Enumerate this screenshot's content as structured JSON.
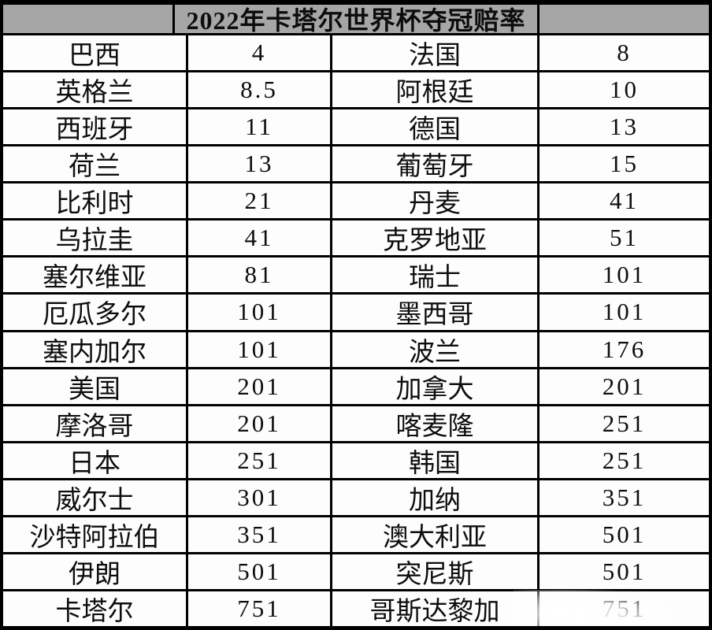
{
  "title": "2022年卡塔尔世界杯夺冠赔率",
  "colors": {
    "header_bg": "#a6a6a6",
    "border": "#000000",
    "cell_bg": "#fdfdfd",
    "text": "#0d0d0d"
  },
  "table": {
    "rows": [
      {
        "cells": [
          "巴西",
          "4",
          "法国",
          "8"
        ]
      },
      {
        "cells": [
          "英格兰",
          "8.5",
          "阿根廷",
          "10"
        ]
      },
      {
        "cells": [
          "西班牙",
          "11",
          "德国",
          "13"
        ]
      },
      {
        "cells": [
          "荷兰",
          "13",
          "葡萄牙",
          "15"
        ]
      },
      {
        "cells": [
          "比利时",
          "21",
          "丹麦",
          "41"
        ]
      },
      {
        "cells": [
          "乌拉圭",
          "41",
          "克罗地亚",
          "51"
        ]
      },
      {
        "cells": [
          "塞尔维亚",
          "81",
          "瑞士",
          "101"
        ]
      },
      {
        "cells": [
          "厄瓜多尔",
          "101",
          "墨西哥",
          "101"
        ]
      },
      {
        "cells": [
          "塞内加尔",
          "101",
          "波兰",
          "176"
        ]
      },
      {
        "cells": [
          "美国",
          "201",
          "加拿大",
          "201"
        ]
      },
      {
        "cells": [
          "摩洛哥",
          "201",
          "喀麦隆",
          "251"
        ]
      },
      {
        "cells": [
          "日本",
          "251",
          "韩国",
          "251"
        ]
      },
      {
        "cells": [
          "威尔士",
          "301",
          "加纳",
          "351"
        ]
      },
      {
        "cells": [
          "沙特阿拉伯",
          "351",
          "澳大利亚",
          "501"
        ]
      },
      {
        "cells": [
          "伊朗",
          "501",
          "突尼斯",
          "501"
        ]
      },
      {
        "cells": [
          "卡塔尔",
          "751",
          "哥斯达黎加",
          "751"
        ]
      }
    ]
  },
  "chart_data": {
    "type": "table",
    "title": "2022年卡塔尔世界杯夺冠赔率",
    "rows": [
      [
        "巴西",
        "4",
        "法国",
        "8"
      ],
      [
        "英格兰",
        "8.5",
        "阿根廷",
        "10"
      ],
      [
        "西班牙",
        "11",
        "德国",
        "13"
      ],
      [
        "荷兰",
        "13",
        "葡萄牙",
        "15"
      ],
      [
        "比利时",
        "21",
        "丹麦",
        "41"
      ],
      [
        "乌拉圭",
        "41",
        "克罗地亚",
        "51"
      ],
      [
        "塞尔维亚",
        "81",
        "瑞士",
        "101"
      ],
      [
        "厄瓜多尔",
        "101",
        "墨西哥",
        "101"
      ],
      [
        "塞内加尔",
        "101",
        "波兰",
        "176"
      ],
      [
        "美国",
        "201",
        "加拿大",
        "201"
      ],
      [
        "摩洛哥",
        "201",
        "喀麦隆",
        "251"
      ],
      [
        "日本",
        "251",
        "韩国",
        "251"
      ],
      [
        "威尔士",
        "301",
        "加纳",
        "351"
      ],
      [
        "沙特阿拉伯",
        "351",
        "澳大利亚",
        "501"
      ],
      [
        "伊朗",
        "501",
        "突尼斯",
        "501"
      ],
      [
        "卡塔尔",
        "751",
        "哥斯达黎加",
        "751"
      ]
    ]
  }
}
